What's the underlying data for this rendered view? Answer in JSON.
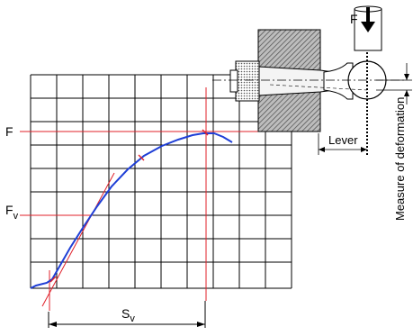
{
  "labels": {
    "force_top": "F",
    "f_axis": "F",
    "fv_main": "F",
    "fv_sub": "v",
    "sv_main": "S",
    "sv_sub": "v",
    "lever": "Lever",
    "measure": "Measure of deformation"
  },
  "colors": {
    "curve": "#1f3fd6",
    "marker": "#e0202a",
    "grid": "#000000",
    "hatch": "#555555"
  }
}
